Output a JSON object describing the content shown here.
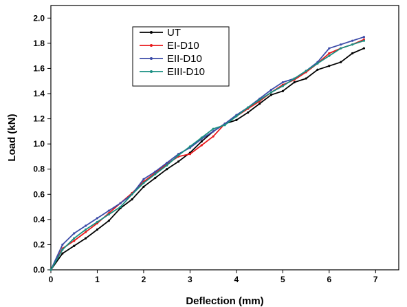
{
  "chart_data": {
    "type": "line",
    "title": "",
    "xlabel": "Deflection (mm)",
    "ylabel": "Load (kN)",
    "xlim": [
      0,
      7.5
    ],
    "ylim": [
      0,
      2.1
    ],
    "xticks": [
      0,
      1,
      2,
      3,
      4,
      5,
      6,
      7
    ],
    "yticks": [
      0.0,
      0.2,
      0.4,
      0.6,
      0.8,
      1.0,
      1.2,
      1.4,
      1.6,
      1.8,
      2.0
    ],
    "xtick_labels": [
      "0",
      "1",
      "2",
      "3",
      "4",
      "5",
      "6",
      "7"
    ],
    "ytick_labels": [
      "0.0",
      "0.2",
      "0.4",
      "0.6",
      "0.8",
      "1.0",
      "1.2",
      "1.4",
      "1.6",
      "1.8",
      "2.0"
    ],
    "grid": false,
    "legend_position": "top-left",
    "series": [
      {
        "name": "UT",
        "color": "#000000",
        "x": [
          0,
          0.25,
          0.5,
          0.75,
          1.0,
          1.25,
          1.5,
          1.75,
          2.0,
          2.25,
          2.5,
          2.75,
          3.0,
          3.25,
          3.5,
          3.75,
          4.0,
          4.25,
          4.5,
          4.75,
          5.0,
          5.25,
          5.5,
          5.75,
          6.0,
          6.25,
          6.5,
          6.75
        ],
        "y": [
          0,
          0.13,
          0.19,
          0.25,
          0.32,
          0.39,
          0.49,
          0.56,
          0.66,
          0.73,
          0.8,
          0.86,
          0.93,
          1.02,
          1.1,
          1.16,
          1.19,
          1.25,
          1.32,
          1.39,
          1.42,
          1.49,
          1.52,
          1.59,
          1.62,
          1.65,
          1.72,
          1.76
        ]
      },
      {
        "name": "EI-D10",
        "color": "#e8191b",
        "x": [
          0,
          0.25,
          0.5,
          0.75,
          1.0,
          1.25,
          1.5,
          1.75,
          2.0,
          2.25,
          2.5,
          2.75,
          3.0,
          3.25,
          3.5,
          3.75,
          4.0,
          4.25,
          4.5,
          4.75,
          5.0,
          5.25,
          5.5,
          5.75,
          6.0,
          6.25,
          6.5,
          6.75
        ],
        "y": [
          0,
          0.17,
          0.23,
          0.3,
          0.37,
          0.45,
          0.53,
          0.61,
          0.7,
          0.77,
          0.84,
          0.9,
          0.92,
          0.99,
          1.06,
          1.16,
          1.22,
          1.28,
          1.34,
          1.41,
          1.47,
          1.51,
          1.57,
          1.64,
          1.72,
          1.76,
          1.79,
          1.83
        ]
      },
      {
        "name": "EII-D10",
        "color": "#3c4ba8",
        "x": [
          0,
          0.25,
          0.5,
          0.75,
          1.0,
          1.25,
          1.5,
          1.75,
          2.0,
          2.25,
          2.5,
          2.75,
          3.0,
          3.25,
          3.5,
          3.75,
          4.0,
          4.25,
          4.5,
          4.75,
          5.0,
          5.25,
          5.5,
          5.75,
          6.0,
          6.25,
          6.5,
          6.75
        ],
        "y": [
          0,
          0.2,
          0.29,
          0.35,
          0.41,
          0.47,
          0.53,
          0.6,
          0.72,
          0.78,
          0.85,
          0.92,
          0.97,
          1.04,
          1.1,
          1.16,
          1.23,
          1.29,
          1.36,
          1.43,
          1.49,
          1.52,
          1.58,
          1.65,
          1.76,
          1.79,
          1.82,
          1.85
        ]
      },
      {
        "name": "EIII-D10",
        "color": "#1a8f82",
        "x": [
          0,
          0.25,
          0.5,
          0.75,
          1.0,
          1.25,
          1.5,
          1.75,
          2.0,
          2.25,
          2.5,
          2.75,
          3.0,
          3.25,
          3.5,
          3.75,
          4.0,
          4.25,
          4.5,
          4.75,
          5.0,
          5.25,
          5.5,
          5.75,
          6.0,
          6.25,
          6.5,
          6.75
        ],
        "y": [
          0,
          0.16,
          0.25,
          0.32,
          0.38,
          0.44,
          0.5,
          0.6,
          0.69,
          0.76,
          0.83,
          0.91,
          0.98,
          1.05,
          1.12,
          1.15,
          1.22,
          1.29,
          1.35,
          1.41,
          1.46,
          1.52,
          1.58,
          1.64,
          1.7,
          1.76,
          1.79,
          1.82
        ]
      }
    ]
  }
}
